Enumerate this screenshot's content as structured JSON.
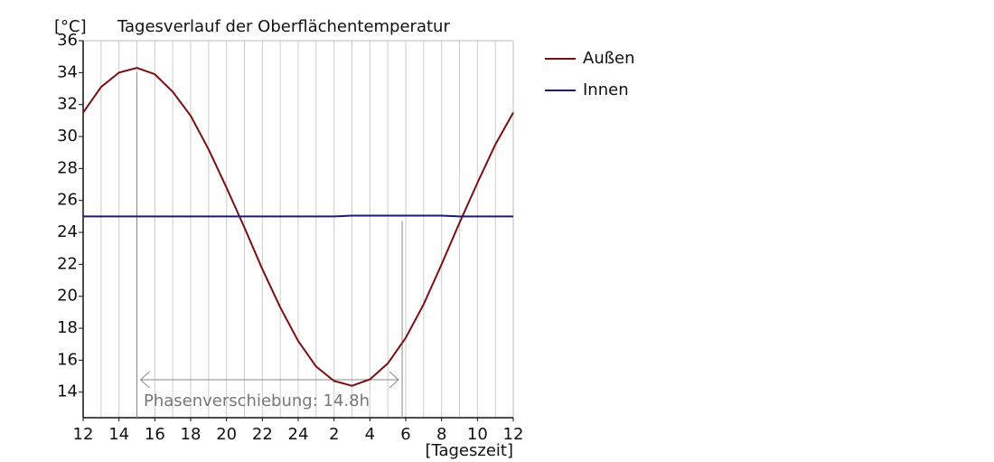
{
  "chart_data": {
    "type": "line",
    "title": "Tagesverlauf der Oberflächentemperatur",
    "ylabel": "[°C]",
    "xlabel": "[Tageszeit]",
    "x": [
      12,
      13,
      14,
      15,
      16,
      17,
      18,
      19,
      20,
      21,
      22,
      23,
      24,
      25,
      26,
      27,
      28,
      29,
      30,
      31,
      32,
      33,
      34,
      35,
      36
    ],
    "series": [
      {
        "name": "Außen",
        "color": "#7a1010",
        "values": [
          31.5,
          33.1,
          34.0,
          34.3,
          33.9,
          32.8,
          31.3,
          29.2,
          26.8,
          24.3,
          21.7,
          19.3,
          17.2,
          15.6,
          14.7,
          14.4,
          14.8,
          15.8,
          17.4,
          19.5,
          22.0,
          24.6,
          27.1,
          29.5,
          31.5
        ]
      },
      {
        "name": "Innen",
        "color": "#1a1a7a",
        "values": [
          25.0,
          25.0,
          25.0,
          25.0,
          25.0,
          25.0,
          25.0,
          25.0,
          25.0,
          25.0,
          25.0,
          25.0,
          25.0,
          25.0,
          25.0,
          25.05,
          25.05,
          25.05,
          25.05,
          25.05,
          25.05,
          25.0,
          25.0,
          25.0,
          25.0
        ]
      }
    ],
    "xlim": [
      12,
      36
    ],
    "ylim": [
      12.4,
      36
    ],
    "xticks": [
      12,
      14,
      16,
      18,
      20,
      22,
      24,
      {
        "value": 26,
        "label": "2"
      },
      {
        "value": 28,
        "label": "4"
      },
      {
        "value": 30,
        "label": "6"
      },
      {
        "value": 32,
        "label": "8"
      },
      {
        "value": 34,
        "label": "10"
      },
      {
        "value": 36,
        "label": "12"
      }
    ],
    "yticks": [
      14,
      16,
      18,
      20,
      22,
      24,
      26,
      28,
      30,
      32,
      34,
      36
    ],
    "grid": true,
    "legend": "right",
    "phase": {
      "start": 15,
      "end": 29.8,
      "label": "Phasenverschiebung: 14.8h"
    }
  }
}
